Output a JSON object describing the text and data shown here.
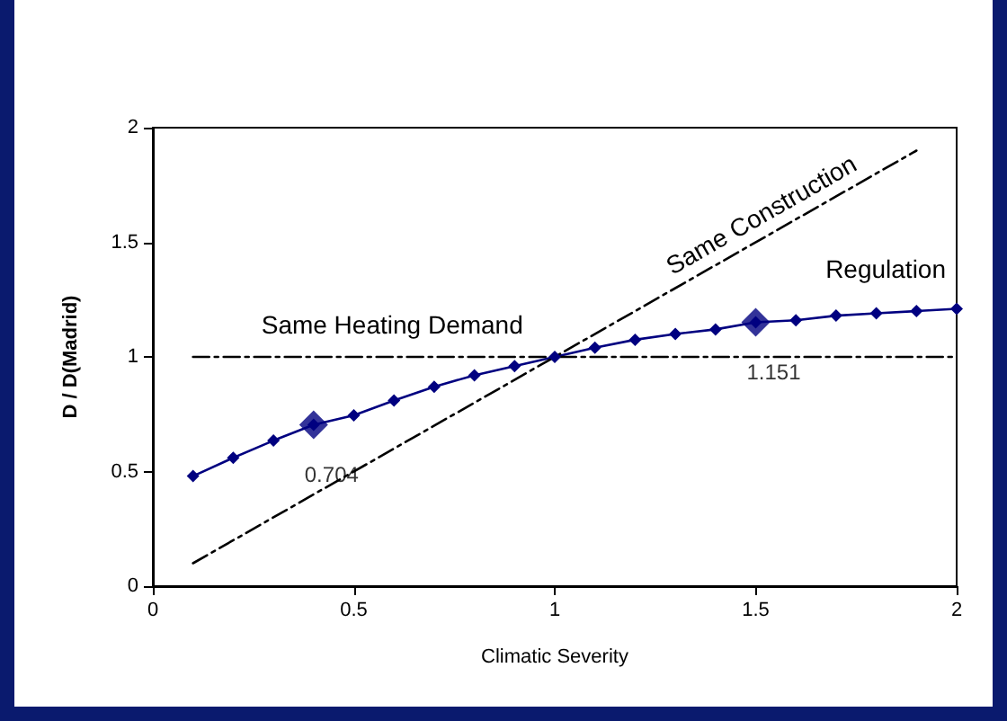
{
  "chart_data": {
    "type": "line",
    "xlabel": "Climatic Severity",
    "ylabel": "D / D(Madrid)",
    "xlim": [
      0,
      2
    ],
    "xticks": [
      0,
      0.5,
      1,
      1.5,
      2
    ],
    "ylim": [
      0,
      2
    ],
    "yticks": [
      0,
      0.5,
      1,
      1.5,
      2
    ],
    "grid": false,
    "series": [
      {
        "name": "Regulation",
        "color": "#000080",
        "marker": "diamond",
        "line_style": "solid",
        "x": [
          0.1,
          0.2,
          0.3,
          0.4,
          0.5,
          0.6,
          0.7,
          0.8,
          0.9,
          1.0,
          1.1,
          1.2,
          1.3,
          1.4,
          1.5,
          1.6,
          1.7,
          1.8,
          1.9,
          2.0
        ],
        "values": [
          0.48,
          0.56,
          0.635,
          0.704,
          0.745,
          0.81,
          0.87,
          0.92,
          0.96,
          1.0,
          1.04,
          1.075,
          1.1,
          1.12,
          1.151,
          1.16,
          1.18,
          1.19,
          1.2,
          1.21
        ]
      },
      {
        "name": "Same Construction",
        "color": "#000000",
        "marker": "none",
        "line_style": "dashed",
        "x": [
          0.1,
          1.9
        ],
        "values": [
          0.1,
          1.9
        ]
      },
      {
        "name": "Same Heating Demand",
        "color": "#000000",
        "marker": "none",
        "line_style": "dashed",
        "x": [
          0.1,
          2.0
        ],
        "values": [
          1,
          1
        ]
      },
      {
        "type": "scatter",
        "color": "#000080",
        "marker": "diamond",
        "x": [
          0.4,
          1.5
        ],
        "values": [
          0.704,
          1.151
        ],
        "value_labels": [
          "0.704",
          "1.151"
        ]
      }
    ]
  }
}
